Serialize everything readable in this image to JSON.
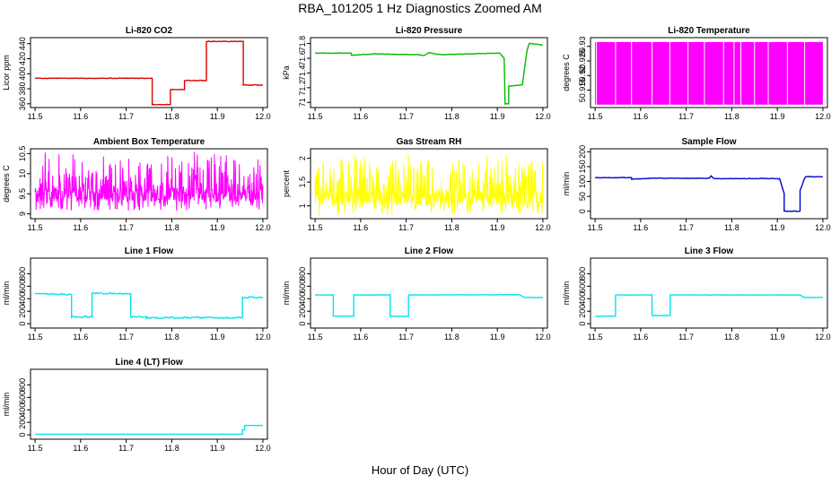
{
  "title": "RBA_101205  1 Hz Diagnostics Zoomed AM",
  "xlabel": "Hour of Day (UTC)",
  "chart_data": [
    {
      "type": "line",
      "title": "Li-820 CO2",
      "ylabel": "Licor ppm",
      "xlim": [
        11.49,
        12.01
      ],
      "ylim": [
        355,
        448
      ],
      "yticks": [
        360,
        380,
        400,
        420,
        440
      ],
      "xticks": [
        11.5,
        11.6,
        11.7,
        11.8,
        11.9,
        12.0
      ],
      "color": "#dd0000",
      "noise": 0.4,
      "x": [
        11.5,
        11.757,
        11.757,
        11.797,
        11.797,
        11.828,
        11.828,
        11.876,
        11.876,
        11.957,
        11.957,
        12.0
      ],
      "y": [
        394,
        394,
        359,
        359,
        379,
        379,
        391,
        391,
        443,
        443,
        385,
        385
      ]
    },
    {
      "type": "line",
      "title": "Li-820 Pressure",
      "ylabel": "kPa",
      "xlim": [
        11.49,
        12.01
      ],
      "ylim": [
        70.93,
        71.88
      ],
      "yticks": [
        71.0,
        71.2,
        71.4,
        71.6,
        71.8
      ],
      "xticks": [
        11.5,
        11.6,
        11.7,
        11.8,
        11.9,
        12.0
      ],
      "color": "#00bb00",
      "noise": 0.003,
      "x": [
        11.5,
        11.58,
        11.58,
        11.63,
        11.72,
        11.74,
        11.75,
        11.76,
        11.78,
        11.905,
        11.915,
        11.917,
        11.925,
        11.925,
        11.955,
        11.965,
        11.97,
        11.985,
        12.0
      ],
      "y": [
        71.67,
        71.67,
        71.64,
        71.66,
        71.65,
        71.64,
        71.68,
        71.66,
        71.65,
        71.67,
        71.6,
        70.98,
        70.98,
        71.22,
        71.24,
        71.7,
        71.8,
        71.79,
        71.78
      ]
    },
    {
      "type": "area",
      "title": "Li-820 Temperature",
      "ylabel": "degrees C",
      "xlim": [
        11.49,
        12.01
      ],
      "ylim": [
        50.909,
        50.933
      ],
      "yticks": [
        50.915,
        50.92,
        50.925,
        50.93
      ],
      "xticks": [
        11.5,
        11.6,
        11.7,
        11.8,
        11.9,
        12.0
      ],
      "color": "#ff00ff",
      "x": [
        11.5,
        12.0
      ],
      "y": [
        50.9315,
        50.9315
      ],
      "fill_to": 50.91,
      "gaps": [
        11.503,
        11.545,
        11.58,
        11.625,
        11.664,
        11.704,
        11.74,
        11.782,
        11.805,
        11.82,
        11.85,
        11.88,
        11.922,
        11.96
      ]
    },
    {
      "type": "line",
      "title": "Ambient Box Temperature",
      "ylabel": "degrees C",
      "xlim": [
        11.49,
        12.01
      ],
      "ylim": [
        8.88,
        10.62
      ],
      "yticks": [
        9.0,
        9.5,
        10.0,
        10.5
      ],
      "xticks": [
        11.5,
        11.6,
        11.7,
        11.8,
        11.9,
        12.0
      ],
      "color": "#ff00ff",
      "random": {
        "base": 9.48,
        "low": 9.08,
        "high": 10.55,
        "n": 650,
        "seed": 7
      }
    },
    {
      "type": "line",
      "title": "Gas Stream RH",
      "ylabel": "percent",
      "xlim": [
        11.49,
        12.01
      ],
      "ylim": [
        0.73,
        2.2
      ],
      "yticks": [
        1.0,
        1.5,
        2.0
      ],
      "xticks": [
        11.5,
        11.6,
        11.7,
        11.8,
        11.9,
        12.0
      ],
      "color": "#ffff00",
      "random": {
        "base": 1.18,
        "low": 0.8,
        "high": 2.12,
        "n": 650,
        "seed": 13
      }
    },
    {
      "type": "line",
      "title": "Sample Flow",
      "ylabel": "ml/min",
      "xlim": [
        11.49,
        12.01
      ],
      "ylim": [
        -25,
        210
      ],
      "yticks": [
        0,
        50,
        100,
        150,
        200
      ],
      "xticks": [
        11.5,
        11.6,
        11.7,
        11.8,
        11.9,
        12.0
      ],
      "color": "#0000cc",
      "noise": 0.8,
      "x": [
        11.5,
        11.58,
        11.58,
        11.63,
        11.75,
        11.755,
        11.76,
        11.88,
        11.905,
        11.91,
        11.915,
        11.915,
        11.95,
        11.95,
        11.96,
        11.962,
        12.0
      ],
      "y": [
        113,
        113,
        108,
        111,
        111,
        119,
        110,
        110,
        109,
        85,
        60,
        0,
        0,
        70,
        112,
        116,
        116
      ]
    },
    {
      "type": "line",
      "title": "Line 1 Flow",
      "ylabel": "ml/min",
      "xlim": [
        11.49,
        12.01
      ],
      "ylim": [
        -70,
        1050
      ],
      "yticks": [
        0,
        200,
        400,
        600,
        800
      ],
      "xticks": [
        11.5,
        11.6,
        11.7,
        11.8,
        11.9,
        12.0
      ],
      "color": "#00e5ee",
      "noise": 12,
      "x": [
        11.5,
        11.58,
        11.58,
        11.625,
        11.625,
        11.71,
        11.71,
        11.745,
        11.745,
        11.955,
        11.955,
        12.0
      ],
      "y": [
        480,
        470,
        110,
        110,
        490,
        480,
        110,
        110,
        95,
        95,
        420,
        420
      ]
    },
    {
      "type": "line",
      "title": "Line 2 Flow",
      "ylabel": "ml/min",
      "xlim": [
        11.49,
        12.01
      ],
      "ylim": [
        -70,
        1050
      ],
      "yticks": [
        0,
        200,
        400,
        600,
        800
      ],
      "xticks": [
        11.5,
        11.6,
        11.7,
        11.8,
        11.9,
        12.0
      ],
      "color": "#00e5ee",
      "noise": 3,
      "x": [
        11.5,
        11.54,
        11.54,
        11.585,
        11.585,
        11.665,
        11.665,
        11.705,
        11.705,
        11.95,
        11.95,
        11.96,
        11.96,
        12.0
      ],
      "y": [
        460,
        460,
        120,
        120,
        460,
        460,
        120,
        120,
        460,
        465,
        460,
        420,
        420,
        420
      ]
    },
    {
      "type": "line",
      "title": "Line 3 Flow",
      "ylabel": "ml/min",
      "xlim": [
        11.49,
        12.01
      ],
      "ylim": [
        -70,
        1050
      ],
      "yticks": [
        0,
        200,
        400,
        600,
        800
      ],
      "xticks": [
        11.5,
        11.6,
        11.7,
        11.8,
        11.9,
        12.0
      ],
      "color": "#00e5ee",
      "noise": 3,
      "x": [
        11.5,
        11.545,
        11.545,
        11.625,
        11.625,
        11.665,
        11.665,
        11.95,
        11.95,
        11.96,
        11.96,
        12.0
      ],
      "y": [
        120,
        120,
        460,
        460,
        130,
        130,
        460,
        460,
        455,
        420,
        420,
        420
      ]
    },
    {
      "type": "line",
      "title": "Line 4 (LT) Flow",
      "ylabel": "ml/min",
      "xlim": [
        11.49,
        12.01
      ],
      "ylim": [
        -70,
        1050
      ],
      "yticks": [
        0,
        200,
        400,
        600,
        800
      ],
      "xticks": [
        11.5,
        11.6,
        11.7,
        11.8,
        11.9,
        12.0
      ],
      "color": "#00e5ee",
      "noise": 0,
      "x": [
        11.5,
        11.955,
        11.955,
        11.96,
        11.96,
        12.0
      ],
      "y": [
        10,
        10,
        80,
        80,
        150,
        150
      ]
    }
  ]
}
